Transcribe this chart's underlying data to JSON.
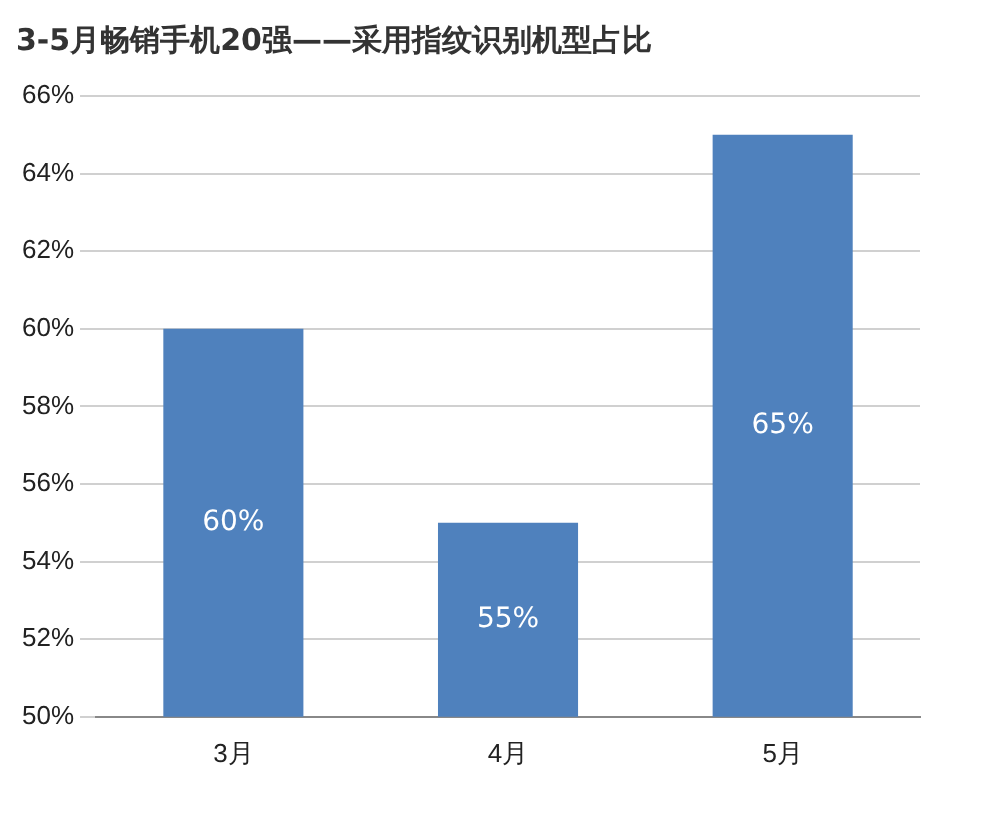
{
  "chart_data": {
    "type": "bar",
    "title": "3-5月畅销手机20强——采用指纹识别机型占比",
    "categories": [
      "3月",
      "4月",
      "5月"
    ],
    "values": [
      60,
      55,
      65
    ],
    "value_labels": [
      "60%",
      "55%",
      "65%"
    ],
    "color": "#4f81bd",
    "ylim": [
      50,
      66
    ],
    "yticks": [
      {
        "value": 50,
        "label": "50%"
      },
      {
        "value": 52,
        "label": "52%"
      },
      {
        "value": 54,
        "label": "54%"
      },
      {
        "value": 56,
        "label": "56%"
      },
      {
        "value": 58,
        "label": "58%"
      },
      {
        "value": 60,
        "label": "60%"
      },
      {
        "value": 62,
        "label": "62%"
      },
      {
        "value": 64,
        "label": "64%"
      },
      {
        "value": 66,
        "label": "66%"
      }
    ],
    "grid": "y"
  }
}
